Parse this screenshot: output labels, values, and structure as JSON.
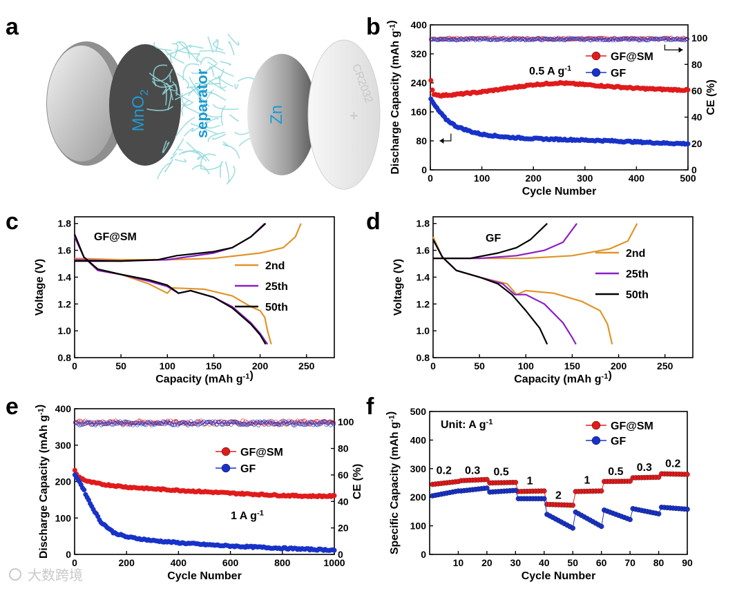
{
  "panel_letters": [
    "a",
    "b",
    "c",
    "d",
    "e",
    "f"
  ],
  "schematic": {
    "labels": {
      "cathode": "MnO",
      "cathode_sub": "2",
      "separator": "separator",
      "anode": "Zn",
      "case": "CR2032"
    }
  },
  "colors": {
    "gfsm": "#e01b1b",
    "gf": "#1832c8",
    "second": "#e09428",
    "twentyfifth": "#8a1fc4",
    "fiftieth": "#000000",
    "schematic_label": "#1e9ad2",
    "separator_fiber": "#8fd8dc"
  },
  "watermark": "大数跨境",
  "chart_data": [
    {
      "panel": "b",
      "type": "scatter",
      "xlabel": "Cycle Number",
      "ylabel": "Discharge Capacity (mAh g-1)",
      "y2label": "CE (%)",
      "xlim": [
        0,
        500
      ],
      "ylim": [
        0,
        400
      ],
      "y2lim": [
        0,
        110
      ],
      "xticks": [
        0,
        100,
        200,
        300,
        400,
        500
      ],
      "yticks": [
        0,
        80,
        160,
        240,
        320,
        400
      ],
      "y2ticks": [
        0,
        20,
        40,
        60,
        80,
        100
      ],
      "annotation": "0.5 A g-1",
      "legend": [
        "GF@SM",
        "GF"
      ],
      "legend_position": "top-right",
      "series": [
        {
          "name": "GF@SM",
          "color": "#e01b1b",
          "axis": "left",
          "x": [
            1,
            5,
            20,
            50,
            100,
            150,
            200,
            250,
            300,
            350,
            400,
            450,
            500
          ],
          "values": [
            245,
            210,
            205,
            208,
            215,
            225,
            235,
            240,
            235,
            230,
            225,
            222,
            220
          ]
        },
        {
          "name": "GF",
          "color": "#1832c8",
          "axis": "left",
          "x": [
            1,
            5,
            15,
            30,
            50,
            80,
            100,
            150,
            200,
            250,
            300,
            350,
            400,
            450,
            500
          ],
          "values": [
            195,
            185,
            165,
            140,
            120,
            105,
            98,
            90,
            86,
            84,
            82,
            80,
            77,
            74,
            72
          ]
        },
        {
          "name": "GF@SM CE",
          "color": "#e01b1b",
          "axis": "right",
          "x": [
            0,
            500
          ],
          "values": [
            99.5,
            99.5
          ]
        },
        {
          "name": "GF CE",
          "color": "#1832c8",
          "axis": "right",
          "x": [
            0,
            500
          ],
          "values": [
            99.0,
            99.0
          ]
        }
      ]
    },
    {
      "panel": "c",
      "type": "line",
      "xlabel": "Capacity (mAh g-1)",
      "ylabel": "Voltage (V)",
      "xlim": [
        0,
        280
      ],
      "ylim": [
        0.8,
        1.85
      ],
      "xticks": [
        0,
        50,
        100,
        150,
        200,
        250
      ],
      "yticks": [
        0.8,
        1.0,
        1.2,
        1.4,
        1.6,
        1.8
      ],
      "annotation": "GF@SM",
      "legend": [
        "2nd",
        "25th",
        "50th"
      ],
      "legend_position": "right",
      "series": [
        {
          "name": "2nd",
          "color": "#e09428",
          "discharge": [
            [
              0,
              1.72
            ],
            [
              10,
              1.55
            ],
            [
              25,
              1.45
            ],
            [
              50,
              1.42
            ],
            [
              80,
              1.35
            ],
            [
              100,
              1.28
            ],
            [
              105,
              1.32
            ],
            [
              140,
              1.31
            ],
            [
              170,
              1.26
            ],
            [
              190,
              1.18
            ],
            [
              200,
              1.15
            ],
            [
              205,
              1.1
            ],
            [
              208,
              1.0
            ],
            [
              212,
              0.9
            ]
          ],
          "charge": [
            [
              0,
              1.54
            ],
            [
              50,
              1.53
            ],
            [
              100,
              1.53
            ],
            [
              150,
              1.54
            ],
            [
              200,
              1.58
            ],
            [
              225,
              1.62
            ],
            [
              238,
              1.7
            ],
            [
              244,
              1.8
            ]
          ]
        },
        {
          "name": "25th",
          "color": "#8a1fc4",
          "discharge": [
            [
              0,
              1.7
            ],
            [
              10,
              1.55
            ],
            [
              25,
              1.45
            ],
            [
              50,
              1.42
            ],
            [
              80,
              1.37
            ],
            [
              100,
              1.33
            ],
            [
              112,
              1.28
            ],
            [
              125,
              1.3
            ],
            [
              150,
              1.25
            ],
            [
              170,
              1.18
            ],
            [
              190,
              1.06
            ],
            [
              200,
              0.98
            ],
            [
              208,
              0.9
            ]
          ],
          "charge": [
            [
              0,
              1.53
            ],
            [
              50,
              1.52
            ],
            [
              100,
              1.53
            ],
            [
              150,
              1.58
            ],
            [
              170,
              1.62
            ],
            [
              190,
              1.7
            ],
            [
              205,
              1.8
            ]
          ]
        },
        {
          "name": "50th",
          "color": "#000000",
          "discharge": [
            [
              0,
              1.72
            ],
            [
              10,
              1.55
            ],
            [
              25,
              1.46
            ],
            [
              50,
              1.42
            ],
            [
              80,
              1.38
            ],
            [
              100,
              1.34
            ],
            [
              112,
              1.28
            ],
            [
              125,
              1.3
            ],
            [
              150,
              1.25
            ],
            [
              170,
              1.17
            ],
            [
              190,
              1.05
            ],
            [
              200,
              0.97
            ],
            [
              206,
              0.9
            ]
          ],
          "charge": [
            [
              0,
              1.52
            ],
            [
              50,
              1.52
            ],
            [
              90,
              1.53
            ],
            [
              110,
              1.56
            ],
            [
              150,
              1.59
            ],
            [
              170,
              1.62
            ],
            [
              190,
              1.7
            ],
            [
              206,
              1.8
            ]
          ]
        }
      ]
    },
    {
      "panel": "d",
      "type": "line",
      "xlabel": "Capacity (mAh g-1)",
      "ylabel": "Voltage (V)",
      "xlim": [
        0,
        280
      ],
      "ylim": [
        0.8,
        1.85
      ],
      "xticks": [
        0,
        50,
        100,
        150,
        200,
        250
      ],
      "yticks": [
        0.8,
        1.0,
        1.2,
        1.4,
        1.6,
        1.8
      ],
      "annotation": "GF",
      "legend": [
        "2nd",
        "25th",
        "50th"
      ],
      "legend_position": "right",
      "series": [
        {
          "name": "2nd",
          "color": "#e09428",
          "discharge": [
            [
              0,
              1.7
            ],
            [
              10,
              1.55
            ],
            [
              25,
              1.45
            ],
            [
              50,
              1.4
            ],
            [
              80,
              1.35
            ],
            [
              90,
              1.27
            ],
            [
              100,
              1.3
            ],
            [
              130,
              1.28
            ],
            [
              160,
              1.22
            ],
            [
              180,
              1.15
            ],
            [
              188,
              1.05
            ],
            [
              193,
              0.9
            ]
          ],
          "charge": [
            [
              0,
              1.54
            ],
            [
              50,
              1.54
            ],
            [
              100,
              1.54
            ],
            [
              150,
              1.56
            ],
            [
              190,
              1.61
            ],
            [
              210,
              1.67
            ],
            [
              220,
              1.8
            ]
          ]
        },
        {
          "name": "25th",
          "color": "#8a1fc4",
          "discharge": [
            [
              0,
              1.68
            ],
            [
              10,
              1.55
            ],
            [
              25,
              1.45
            ],
            [
              50,
              1.4
            ],
            [
              75,
              1.35
            ],
            [
              88,
              1.27
            ],
            [
              100,
              1.27
            ],
            [
              120,
              1.2
            ],
            [
              140,
              1.06
            ],
            [
              150,
              0.95
            ],
            [
              154,
              0.9
            ]
          ],
          "charge": [
            [
              0,
              1.54
            ],
            [
              50,
              1.54
            ],
            [
              90,
              1.56
            ],
            [
              120,
              1.6
            ],
            [
              140,
              1.66
            ],
            [
              155,
              1.8
            ]
          ]
        },
        {
          "name": "50th",
          "color": "#000000",
          "discharge": [
            [
              0,
              1.68
            ],
            [
              10,
              1.55
            ],
            [
              25,
              1.45
            ],
            [
              50,
              1.4
            ],
            [
              70,
              1.35
            ],
            [
              85,
              1.27
            ],
            [
              100,
              1.15
            ],
            [
              115,
              1.02
            ],
            [
              123,
              0.9
            ]
          ],
          "charge": [
            [
              0,
              1.54
            ],
            [
              40,
              1.54
            ],
            [
              70,
              1.58
            ],
            [
              90,
              1.62
            ],
            [
              105,
              1.68
            ],
            [
              123,
              1.8
            ]
          ]
        }
      ]
    },
    {
      "panel": "e",
      "type": "scatter",
      "xlabel": "Cycle Number",
      "ylabel": "Discharge Capacity (mAh g-1)",
      "y2label": "CE (%)",
      "xlim": [
        0,
        1000
      ],
      "ylim": [
        0,
        400
      ],
      "y2lim": [
        0,
        110
      ],
      "xticks": [
        0,
        200,
        400,
        600,
        800,
        1000
      ],
      "yticks": [
        0,
        100,
        200,
        300,
        400
      ],
      "y2ticks": [
        0,
        20,
        40,
        60,
        80,
        100
      ],
      "annotation": "1 A g-1",
      "legend": [
        "GF@SM",
        "GF"
      ],
      "legend_position": "center-right",
      "series": [
        {
          "name": "GF@SM",
          "color": "#e01b1b",
          "axis": "left",
          "x": [
            1,
            10,
            50,
            100,
            200,
            300,
            400,
            500,
            600,
            700,
            800,
            900,
            1000
          ],
          "values": [
            230,
            215,
            200,
            193,
            185,
            180,
            176,
            172,
            168,
            165,
            162,
            160,
            160
          ]
        },
        {
          "name": "GF",
          "color": "#1832c8",
          "axis": "left",
          "x": [
            1,
            10,
            30,
            60,
            100,
            150,
            200,
            300,
            400,
            500,
            600,
            700,
            800,
            900,
            1000
          ],
          "values": [
            220,
            210,
            185,
            140,
            90,
            60,
            48,
            38,
            32,
            27,
            23,
            20,
            17,
            14,
            12
          ]
        },
        {
          "name": "GF@SM CE",
          "color": "#e01b1b",
          "axis": "right",
          "x": [
            0,
            1000
          ],
          "values": [
            99.5,
            99.5
          ]
        },
        {
          "name": "GF CE",
          "color": "#1832c8",
          "axis": "right",
          "x": [
            0,
            1000
          ],
          "values": [
            99.0,
            99.0
          ]
        }
      ]
    },
    {
      "panel": "f",
      "type": "scatter",
      "xlabel": "Cycle Number",
      "ylabel": "Specific  Capacity (mAh g-1)",
      "xlim": [
        0,
        90
      ],
      "ylim": [
        0,
        500
      ],
      "xticks": [
        10,
        20,
        30,
        40,
        50,
        60,
        70,
        80,
        90
      ],
      "yticks": [
        0,
        100,
        200,
        300,
        400,
        500
      ],
      "annotation": "Unit: A g-1",
      "legend": [
        "GF@SM",
        "GF"
      ],
      "legend_position": "top-right",
      "rate_labels": [
        {
          "text": "0.2",
          "x": 5,
          "y": 282
        },
        {
          "text": "0.3",
          "x": 15,
          "y": 282
        },
        {
          "text": "0.5",
          "x": 25,
          "y": 277
        },
        {
          "text": "1",
          "x": 35,
          "y": 245
        },
        {
          "text": "2",
          "x": 45,
          "y": 195
        },
        {
          "text": "1",
          "x": 55,
          "y": 248
        },
        {
          "text": "0.5",
          "x": 65,
          "y": 278
        },
        {
          "text": "0.3",
          "x": 75,
          "y": 292
        },
        {
          "text": "0.2",
          "x": 85,
          "y": 305
        }
      ],
      "series": [
        {
          "name": "GF@SM",
          "color": "#e01b1b",
          "segments": [
            [
              1,
              10,
              245,
              255
            ],
            [
              11,
              20,
              258,
              262
            ],
            [
              21,
              30,
              250,
              252
            ],
            [
              31,
              40,
              220,
              222
            ],
            [
              41,
              50,
              175,
              172
            ],
            [
              51,
              60,
              220,
              222
            ],
            [
              61,
              70,
              255,
              256
            ],
            [
              71,
              80,
              268,
              270
            ],
            [
              81,
              90,
              282,
              280
            ]
          ]
        },
        {
          "name": "GF",
          "color": "#1832c8",
          "segments": [
            [
              1,
              10,
              205,
              222
            ],
            [
              11,
              20,
              222,
              232
            ],
            [
              21,
              30,
              218,
              224
            ],
            [
              31,
              40,
              195,
              195
            ],
            [
              41,
              50,
              140,
              92
            ],
            [
              51,
              60,
              148,
              98
            ],
            [
              61,
              70,
              155,
              122
            ],
            [
              71,
              80,
              160,
              142
            ],
            [
              81,
              90,
              165,
              158
            ]
          ]
        }
      ]
    }
  ]
}
